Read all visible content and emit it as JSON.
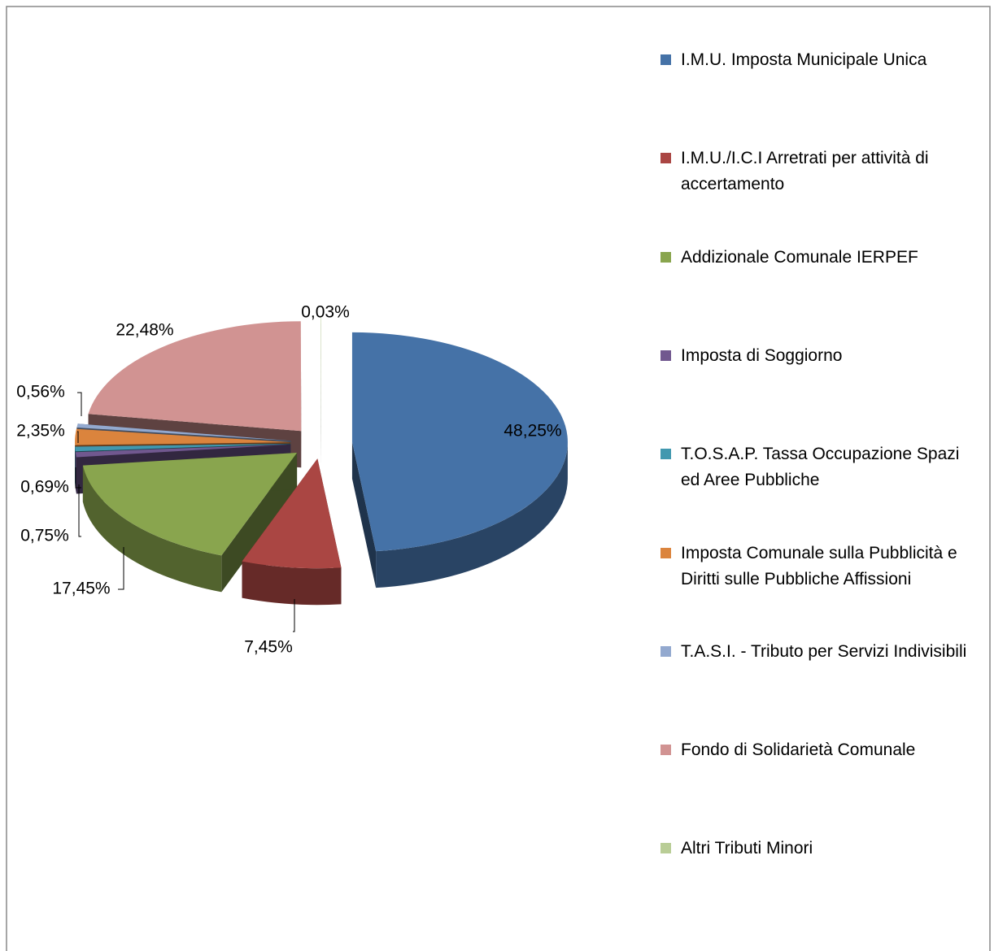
{
  "chart_data": {
    "type": "pie3d",
    "categories": [
      "I.M.U. Imposta Municipale Unica",
      "I.M.U./I.C.I Arretrati per attività di accertamento",
      "Addizionale Comunale IERPEF",
      "Imposta di Soggiorno",
      "T.O.S.A.P. Tassa Occupazione Spazi ed Aree Pubbliche",
      "Imposta Comunale sulla Pubblicità e Diritti sulle Pubbliche Affissioni",
      "T.A.S.I. - Tributo per Servizi Indivisibili",
      "Fondo di Solidarietà Comunale",
      "Altri Tributi Minori"
    ],
    "values": [
      48.25,
      7.45,
      17.45,
      0.75,
      0.69,
      2.35,
      0.56,
      22.48,
      0.03
    ],
    "value_labels": [
      "48,25%",
      "7,45%",
      "17,45%",
      "0,75%",
      "0,69%",
      "2,35%",
      "0,56%",
      "22,48%",
      "0,03%"
    ],
    "colors": [
      "#4572A7",
      "#AA4643",
      "#89A54E",
      "#71588F",
      "#4198AF",
      "#DB843D",
      "#93A9CF",
      "#D19392",
      "#B9CD96"
    ],
    "legend": "right"
  }
}
